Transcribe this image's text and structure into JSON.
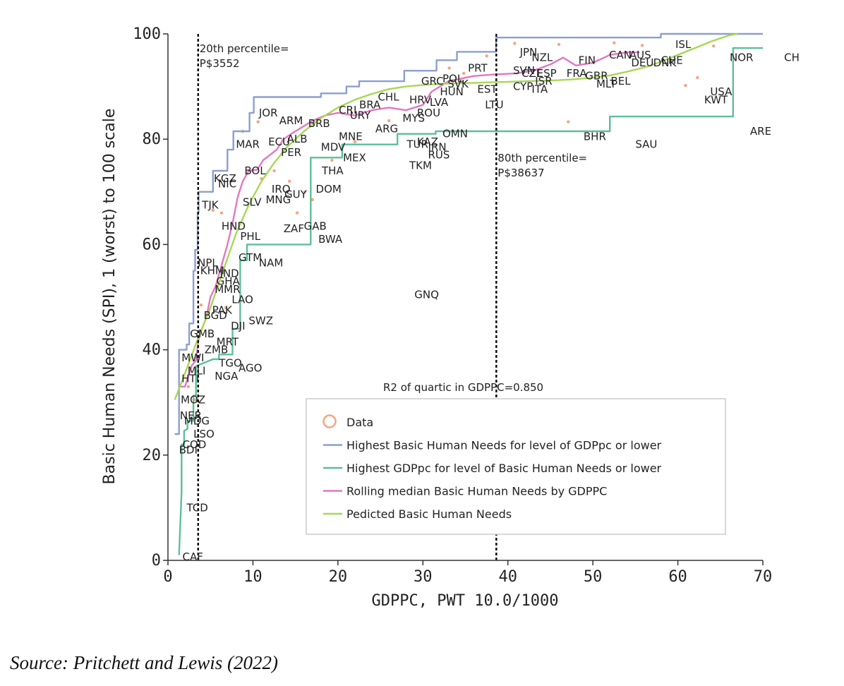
{
  "source_text": "Source:  Pritchett and Lewis (2022)",
  "colors": {
    "data": "#f4a582",
    "highest_bhn": "#8c9fd0",
    "highest_gdp": "#5cbf9a",
    "rolling_median": "#e377c2",
    "predicted": "#a6d854"
  },
  "chart_data": {
    "type": "scatter",
    "xlabel": "GDPPC, PWT 10.0/1000",
    "ylabel": "Basic Human Needs (SPI), 1 (worst) to 100 scale",
    "xlim": [
      0,
      70
    ],
    "ylim": [
      0,
      100
    ],
    "x_ticks": [
      "0",
      "10",
      "20",
      "30",
      "40",
      "50",
      "60",
      "70"
    ],
    "y_ticks": [
      "0",
      "20",
      "40",
      "60",
      "80",
      "100"
    ],
    "vlines": [
      {
        "x": 3.552,
        "label_line1": "20th percentile=",
        "label_line2": "P$3552"
      },
      {
        "x": 38.637,
        "label_line1": "80th percentile=",
        "label_line2": "P$38637"
      }
    ],
    "annotation": "R2 of quartic in GDPPC=0.850",
    "legend": [
      {
        "key": "data",
        "label": "Data"
      },
      {
        "key": "highest_bhn",
        "label": "Highest Basic Human Needs for level of GDPpc or lower"
      },
      {
        "key": "highest_gdp",
        "label": "Highest GDPpc for level of Basic Human Needs or lower"
      },
      {
        "key": "rolling_median",
        "label": "Rolling median Basic Human Needs by GDPPC"
      },
      {
        "key": "predicted",
        "label": "Pedicted Basic Human Needs"
      }
    ],
    "points": [
      {
        "c": "CAF",
        "x": 1.7,
        "y": 0.7
      },
      {
        "c": "TCD",
        "x": 2.2,
        "y": 10
      },
      {
        "c": "BDI",
        "x": 1.3,
        "y": 21
      },
      {
        "c": "COD",
        "x": 1.7,
        "y": 22
      },
      {
        "c": "LSO",
        "x": 3.0,
        "y": 24
      },
      {
        "c": "MDG",
        "x": 1.9,
        "y": 26.5
      },
      {
        "c": "NER",
        "x": 1.4,
        "y": 27.5
      },
      {
        "c": "MOZ",
        "x": 1.5,
        "y": 30.5
      },
      {
        "c": "HTI",
        "x": 1.6,
        "y": 34.5
      },
      {
        "c": "MLI",
        "x": 2.3,
        "y": 36
      },
      {
        "c": "NGA",
        "x": 5.5,
        "y": 35
      },
      {
        "c": "AGO",
        "x": 8.3,
        "y": 36.5
      },
      {
        "c": "TGO",
        "x": 6.0,
        "y": 37.5
      },
      {
        "c": "MWI",
        "x": 1.6,
        "y": 38.5
      },
      {
        "c": "GMB",
        "x": 2.6,
        "y": 43
      },
      {
        "c": "ZMB",
        "x": 4.3,
        "y": 40
      },
      {
        "c": "MRT",
        "x": 5.7,
        "y": 41.5
      },
      {
        "c": "DJI",
        "x": 7.4,
        "y": 44.5
      },
      {
        "c": "SWZ",
        "x": 9.5,
        "y": 45.5
      },
      {
        "c": "BGD",
        "x": 4.2,
        "y": 46.5
      },
      {
        "c": "PAK",
        "x": 5.2,
        "y": 47.5
      },
      {
        "c": "LAO",
        "x": 7.5,
        "y": 49.5
      },
      {
        "c": "MMR",
        "x": 5.5,
        "y": 51.5
      },
      {
        "c": "GHA",
        "x": 5.7,
        "y": 53
      },
      {
        "c": "KHM",
        "x": 3.8,
        "y": 55
      },
      {
        "c": "IND",
        "x": 6.1,
        "y": 54.5
      },
      {
        "c": "NPL",
        "x": 3.5,
        "y": 56.5
      },
      {
        "c": "GTM",
        "x": 8.3,
        "y": 57.5
      },
      {
        "c": "NAM",
        "x": 10.7,
        "y": 56.5
      },
      {
        "c": "PHL",
        "x": 8.5,
        "y": 61.5
      },
      {
        "c": "HND",
        "x": 6.3,
        "y": 63.5
      },
      {
        "c": "TJK",
        "x": 4.0,
        "y": 67.5
      },
      {
        "c": "SLV",
        "x": 8.8,
        "y": 68
      },
      {
        "c": "MNG",
        "x": 11.5,
        "y": 68.5
      },
      {
        "c": "GUY",
        "x": 13.7,
        "y": 69.5
      },
      {
        "c": "ZAF",
        "x": 13.6,
        "y": 63
      },
      {
        "c": "GAB",
        "x": 16.0,
        "y": 63.5
      },
      {
        "c": "BWA",
        "x": 17.7,
        "y": 61
      },
      {
        "c": "DOM",
        "x": 17.4,
        "y": 70.5
      },
      {
        "c": "THA",
        "x": 18.1,
        "y": 74
      },
      {
        "c": "MEX",
        "x": 20.6,
        "y": 76.5
      },
      {
        "c": "IRQ",
        "x": 12.2,
        "y": 70.5
      },
      {
        "c": "NIC",
        "x": 5.9,
        "y": 71.5
      },
      {
        "c": "KGZ",
        "x": 5.4,
        "y": 72.5
      },
      {
        "c": "BOL",
        "x": 9.0,
        "y": 74
      },
      {
        "c": "MNE",
        "x": 20.1,
        "y": 80.5
      },
      {
        "c": "ARM",
        "x": 13.1,
        "y": 83.5
      },
      {
        "c": "JOR",
        "x": 10.7,
        "y": 85
      },
      {
        "c": "MAR",
        "x": 8.0,
        "y": 79
      },
      {
        "c": "ARG",
        "x": 24.4,
        "y": 82
      },
      {
        "c": "CRI",
        "x": 20.1,
        "y": 85.5
      },
      {
        "c": "CHL",
        "x": 24.7,
        "y": 88
      },
      {
        "c": "BRB",
        "x": 16.5,
        "y": 83
      },
      {
        "c": "MDV",
        "x": 18.0,
        "y": 78.5
      },
      {
        "c": "ALB",
        "x": 14.0,
        "y": 80
      },
      {
        "c": "ECU",
        "x": 11.8,
        "y": 79.5
      },
      {
        "c": "PER",
        "x": 13.3,
        "y": 77.5
      },
      {
        "c": "URY",
        "x": 21.4,
        "y": 84.5
      },
      {
        "c": "BRA",
        "x": 22.5,
        "y": 86.5
      },
      {
        "c": "GRC",
        "x": 29.8,
        "y": 91
      },
      {
        "c": "POL",
        "x": 32.3,
        "y": 91.5
      },
      {
        "c": "SVK",
        "x": 32.9,
        "y": 90.5
      },
      {
        "c": "HUN",
        "x": 32.0,
        "y": 89
      },
      {
        "c": "LVA",
        "x": 30.8,
        "y": 87
      },
      {
        "c": "HRV",
        "x": 28.4,
        "y": 87.5
      },
      {
        "c": "MYS",
        "x": 27.6,
        "y": 84
      },
      {
        "c": "ROU",
        "x": 29.3,
        "y": 85
      },
      {
        "c": "EST",
        "x": 36.4,
        "y": 89.5
      },
      {
        "c": "LTU",
        "x": 37.3,
        "y": 86.5
      },
      {
        "c": "PRT",
        "x": 35.3,
        "y": 93.5
      },
      {
        "c": "OMN",
        "x": 32.3,
        "y": 81
      },
      {
        "c": "TUR",
        "x": 28.1,
        "y": 79
      },
      {
        "c": "KAZ",
        "x": 29.3,
        "y": 79.5
      },
      {
        "c": "IRN",
        "x": 30.6,
        "y": 78.5
      },
      {
        "c": "RUS",
        "x": 30.6,
        "y": 77
      },
      {
        "c": "TKM",
        "x": 28.4,
        "y": 75
      },
      {
        "c": "GNQ",
        "x": 29.0,
        "y": 50.5
      },
      {
        "c": "JPN",
        "x": 41.4,
        "y": 96.5
      },
      {
        "c": "NZL",
        "x": 42.8,
        "y": 95.5
      },
      {
        "c": "SVN",
        "x": 40.6,
        "y": 93
      },
      {
        "c": "CZE",
        "x": 41.6,
        "y": 92.5
      },
      {
        "c": "ESP",
        "x": 43.4,
        "y": 92.5
      },
      {
        "c": "ISR",
        "x": 43.2,
        "y": 91
      },
      {
        "c": "CYP",
        "x": 40.6,
        "y": 90
      },
      {
        "c": "ITA",
        "x": 42.8,
        "y": 89.5
      },
      {
        "c": "FIN",
        "x": 48.3,
        "y": 95
      },
      {
        "c": "FRA",
        "x": 46.9,
        "y": 92.5
      },
      {
        "c": "GBR",
        "x": 49.1,
        "y": 92
      },
      {
        "c": "MLT",
        "x": 50.4,
        "y": 90.5
      },
      {
        "c": "BEL",
        "x": 52.1,
        "y": 91
      },
      {
        "c": "CAN",
        "x": 51.9,
        "y": 96
      },
      {
        "c": "AUS",
        "x": 54.3,
        "y": 96
      },
      {
        "c": "DEU",
        "x": 54.5,
        "y": 94.5
      },
      {
        "c": "DNK",
        "x": 57.1,
        "y": 94.5
      },
      {
        "c": "CHE",
        "x": 58.0,
        "y": 95
      },
      {
        "c": "ISL",
        "x": 59.7,
        "y": 98
      },
      {
        "c": "NOR",
        "x": 66.1,
        "y": 95.5
      },
      {
        "c": "USA",
        "x": 63.8,
        "y": 89
      },
      {
        "c": "KWT",
        "x": 63.1,
        "y": 87.5
      },
      {
        "c": "ARE",
        "x": 68.5,
        "y": 81.5
      },
      {
        "c": "BHR",
        "x": 48.9,
        "y": 80.5
      },
      {
        "c": "SAU",
        "x": 55.0,
        "y": 79
      },
      {
        "c": "CH",
        "x": 72.5,
        "y": 95.5
      }
    ],
    "data_dots": [
      [
        12.5,
        74
      ],
      [
        14.3,
        72
      ],
      [
        16.1,
        70
      ],
      [
        17.0,
        68.5
      ],
      [
        11.0,
        72.5
      ],
      [
        15.2,
        66
      ],
      [
        19.3,
        76
      ],
      [
        22.0,
        79.5
      ],
      [
        26.0,
        83.5
      ],
      [
        33.1,
        93.5
      ],
      [
        34.8,
        92.5
      ],
      [
        37.5,
        95.8
      ],
      [
        40.8,
        98.2
      ],
      [
        46.0,
        98
      ],
      [
        52.5,
        98.3
      ],
      [
        55.8,
        97.8
      ],
      [
        60.9,
        90.2
      ],
      [
        62.3,
        91.7
      ],
      [
        64.2,
        97.7
      ],
      [
        47.1,
        83.3
      ],
      [
        3.2,
        30.5
      ],
      [
        5.3,
        66.5
      ],
      [
        6.3,
        66
      ],
      [
        3.9,
        48.5
      ],
      [
        6.8,
        48
      ],
      [
        2.4,
        33
      ],
      [
        8.8,
        81.5
      ],
      [
        10.6,
        83.3
      ]
    ],
    "series": [
      {
        "key": "highest_bhn",
        "points": [
          [
            0.8,
            24
          ],
          [
            1.3,
            24
          ],
          [
            1.3,
            33
          ],
          [
            1.3,
            40
          ],
          [
            2.2,
            40
          ],
          [
            2.2,
            41
          ],
          [
            2.5,
            41
          ],
          [
            2.5,
            45
          ],
          [
            3.0,
            45
          ],
          [
            3.0,
            55
          ],
          [
            3.2,
            55
          ],
          [
            3.2,
            59
          ],
          [
            3.5,
            59
          ],
          [
            3.5,
            66
          ],
          [
            3.6,
            66
          ],
          [
            3.6,
            70
          ],
          [
            5.3,
            70
          ],
          [
            5.3,
            74
          ],
          [
            7.0,
            74
          ],
          [
            7.0,
            78
          ],
          [
            7.7,
            78
          ],
          [
            7.7,
            81.5
          ],
          [
            9.6,
            81.5
          ],
          [
            9.6,
            85
          ],
          [
            10.1,
            85
          ],
          [
            10.1,
            88
          ],
          [
            18.0,
            88
          ],
          [
            18.0,
            88.7
          ],
          [
            21.0,
            88.7
          ],
          [
            21.0,
            90
          ],
          [
            22.5,
            90
          ],
          [
            22.5,
            91
          ],
          [
            27.8,
            91
          ],
          [
            27.8,
            93
          ],
          [
            31.6,
            93
          ],
          [
            31.6,
            95
          ],
          [
            34.0,
            95
          ],
          [
            34.0,
            96.6
          ],
          [
            38.6,
            96.6
          ],
          [
            38.6,
            99.3
          ],
          [
            58.0,
            99.3
          ],
          [
            58.0,
            100
          ],
          [
            70,
            100
          ]
        ]
      },
      {
        "key": "highest_gdp",
        "points": [
          [
            1.3,
            1
          ],
          [
            1.6,
            13
          ],
          [
            1.6,
            22
          ],
          [
            1.9,
            22
          ],
          [
            1.9,
            24.6
          ],
          [
            2.3,
            25
          ],
          [
            2.3,
            26.5
          ],
          [
            3.0,
            26.5
          ],
          [
            3.0,
            31.3
          ],
          [
            3.3,
            31.3
          ],
          [
            3.3,
            36.9
          ],
          [
            5.3,
            38.2
          ],
          [
            5.3,
            38.2
          ],
          [
            6.0,
            38.2
          ],
          [
            6.0,
            39.1
          ],
          [
            7.6,
            39.1
          ],
          [
            7.6,
            44
          ],
          [
            8.5,
            44
          ],
          [
            8.5,
            57
          ],
          [
            9.3,
            57
          ],
          [
            9.3,
            60
          ],
          [
            16.8,
            60
          ],
          [
            16.8,
            63
          ],
          [
            16.8,
            76.5
          ],
          [
            20.5,
            76.5
          ],
          [
            20.5,
            79
          ],
          [
            27.0,
            79
          ],
          [
            27.0,
            81
          ],
          [
            31.5,
            81
          ],
          [
            31.5,
            81.5
          ],
          [
            52.0,
            81.5
          ],
          [
            52.0,
            84.3
          ],
          [
            66.5,
            84.3
          ],
          [
            66.5,
            97.3
          ],
          [
            70,
            97.3
          ]
        ]
      },
      {
        "key": "rolling_median",
        "points": [
          [
            1.3,
            33
          ],
          [
            2.0,
            33
          ],
          [
            2.8,
            37
          ],
          [
            3.3,
            38
          ],
          [
            3.6,
            42
          ],
          [
            4.0,
            44
          ],
          [
            4.5,
            46
          ],
          [
            5.0,
            50
          ],
          [
            5.6,
            52
          ],
          [
            6.3,
            56
          ],
          [
            7.0,
            60
          ],
          [
            7.6,
            64
          ],
          [
            8.2,
            69
          ],
          [
            8.8,
            72
          ],
          [
            9.5,
            74
          ],
          [
            10.5,
            74.2
          ],
          [
            11.2,
            76
          ],
          [
            12.0,
            77
          ],
          [
            12.8,
            78
          ],
          [
            13.6,
            80
          ],
          [
            14.5,
            81
          ],
          [
            16.0,
            82.5
          ],
          [
            17.0,
            83.5
          ],
          [
            18.5,
            84.5
          ],
          [
            20.0,
            85
          ],
          [
            22.0,
            84.5
          ],
          [
            24.0,
            85.5
          ],
          [
            26.0,
            86
          ],
          [
            28.0,
            85.5
          ],
          [
            30.0,
            86.5
          ],
          [
            31.0,
            89
          ],
          [
            33.0,
            91
          ],
          [
            36.0,
            92
          ],
          [
            38.5,
            92.3
          ],
          [
            41.0,
            92.5
          ],
          [
            43.0,
            93
          ],
          [
            45.0,
            94.2
          ],
          [
            46.5,
            95.5
          ],
          [
            48.0,
            94
          ],
          [
            50.0,
            94.5
          ],
          [
            52.0,
            96
          ],
          [
            54.0,
            96.5
          ],
          [
            55.5,
            96.5
          ]
        ]
      },
      {
        "key": "predicted",
        "points": [
          [
            0.8,
            30.5
          ],
          [
            2.0,
            35.5
          ],
          [
            3.5,
            42
          ],
          [
            5.0,
            48
          ],
          [
            6.5,
            55
          ],
          [
            8.0,
            62
          ],
          [
            9.5,
            67.5
          ],
          [
            11.0,
            72
          ],
          [
            12.5,
            75.5
          ],
          [
            14.0,
            78.5
          ],
          [
            16.0,
            81.5
          ],
          [
            18.0,
            84
          ],
          [
            20.0,
            86
          ],
          [
            22.0,
            87.5
          ],
          [
            24.0,
            88.6
          ],
          [
            26.0,
            89.5
          ],
          [
            28.0,
            90
          ],
          [
            30.0,
            90.3
          ],
          [
            32.0,
            90.5
          ],
          [
            34.0,
            90.6
          ],
          [
            36.0,
            90.7
          ],
          [
            38.0,
            90.8
          ],
          [
            40.0,
            90.9
          ],
          [
            42.0,
            91
          ],
          [
            44.0,
            91.1
          ],
          [
            46.0,
            91.2
          ],
          [
            48.0,
            91.4
          ],
          [
            50.0,
            91.7
          ],
          [
            52.0,
            92.1
          ],
          [
            54.0,
            92.8
          ],
          [
            56.0,
            93.6
          ],
          [
            58.0,
            94.7
          ],
          [
            60.0,
            96
          ],
          [
            62.0,
            97.3
          ],
          [
            64.0,
            98.6
          ],
          [
            66.0,
            99.7
          ],
          [
            67.0,
            100
          ]
        ]
      }
    ]
  }
}
